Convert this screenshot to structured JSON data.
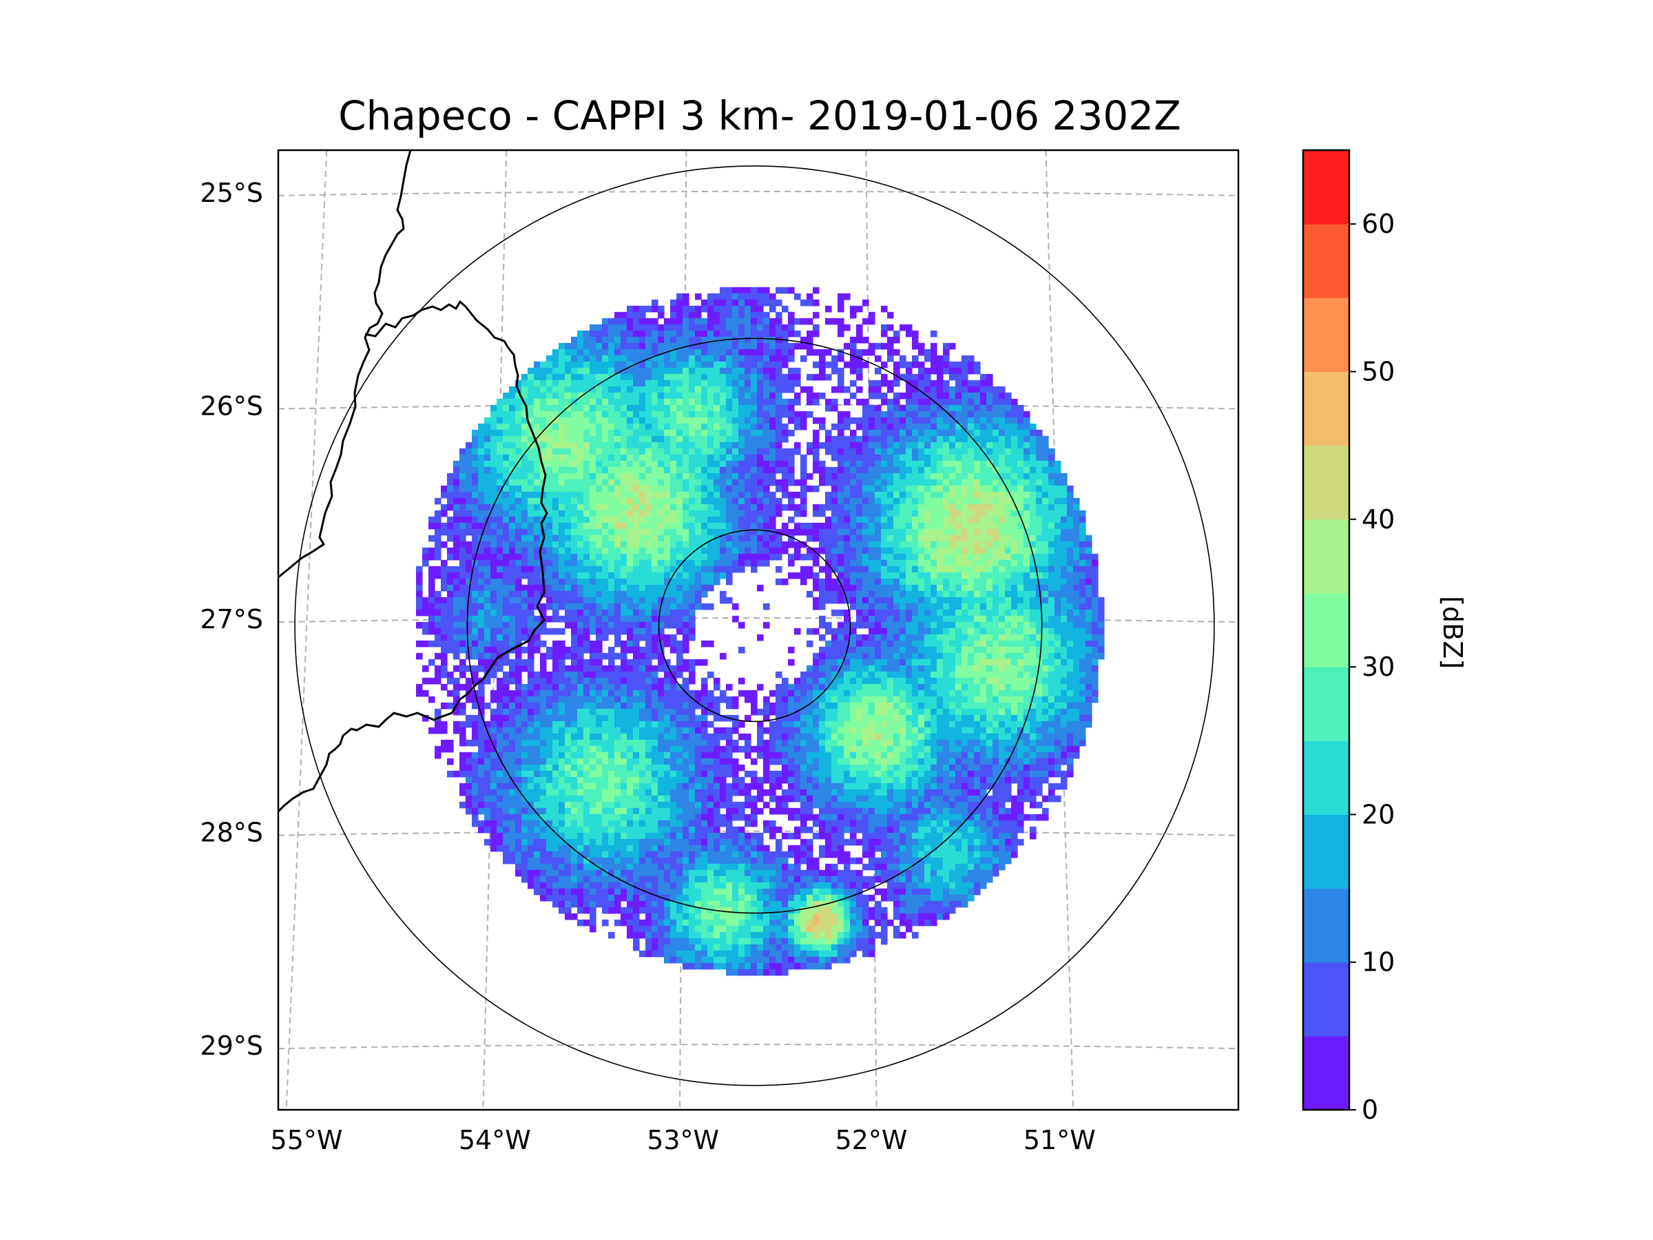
{
  "title": "Chapeco - CAPPI 3 km- 2019-01-06 2302Z",
  "map": {
    "lon_range": [
      -55.15,
      -50.05
    ],
    "lat_range": [
      -29.3,
      -24.8
    ],
    "x_ticks": [
      {
        "lon": -55,
        "label": "55°W"
      },
      {
        "lon": -54,
        "label": "54°W"
      },
      {
        "lon": -53,
        "label": "53°W"
      },
      {
        "lon": -52,
        "label": "52°W"
      },
      {
        "lon": -51,
        "label": "51°W"
      }
    ],
    "y_ticks": [
      {
        "lat": -25,
        "label": "25°S"
      },
      {
        "lat": -26,
        "label": "26°S"
      },
      {
        "lat": -27,
        "label": "27°S"
      },
      {
        "lat": -28,
        "label": "28°S"
      },
      {
        "lat": -29,
        "label": "29°S"
      }
    ],
    "radar_center": {
      "lon": -52.62,
      "lat": -27.03
    },
    "range_rings_km": [
      50,
      150,
      240
    ],
    "data_range_km": 180,
    "gridlines": "dashed gray"
  },
  "colorbar": {
    "label": "[dBZ]",
    "min": 0,
    "max": 65,
    "step": 5,
    "tick_values": [
      0,
      10,
      20,
      30,
      40,
      50,
      60
    ],
    "tick_labels": [
      "0",
      "10",
      "20",
      "30",
      "40",
      "50",
      "60"
    ],
    "colors": [
      "#6d1cff",
      "#4c54f5",
      "#2e86e6",
      "#13b4df",
      "#2adcd6",
      "#4ef0bc",
      "#82fca0",
      "#a9f28c",
      "#cfd97e",
      "#f2be6e",
      "#ff9050",
      "#ff5b32",
      "#ff1d1d"
    ]
  }
}
